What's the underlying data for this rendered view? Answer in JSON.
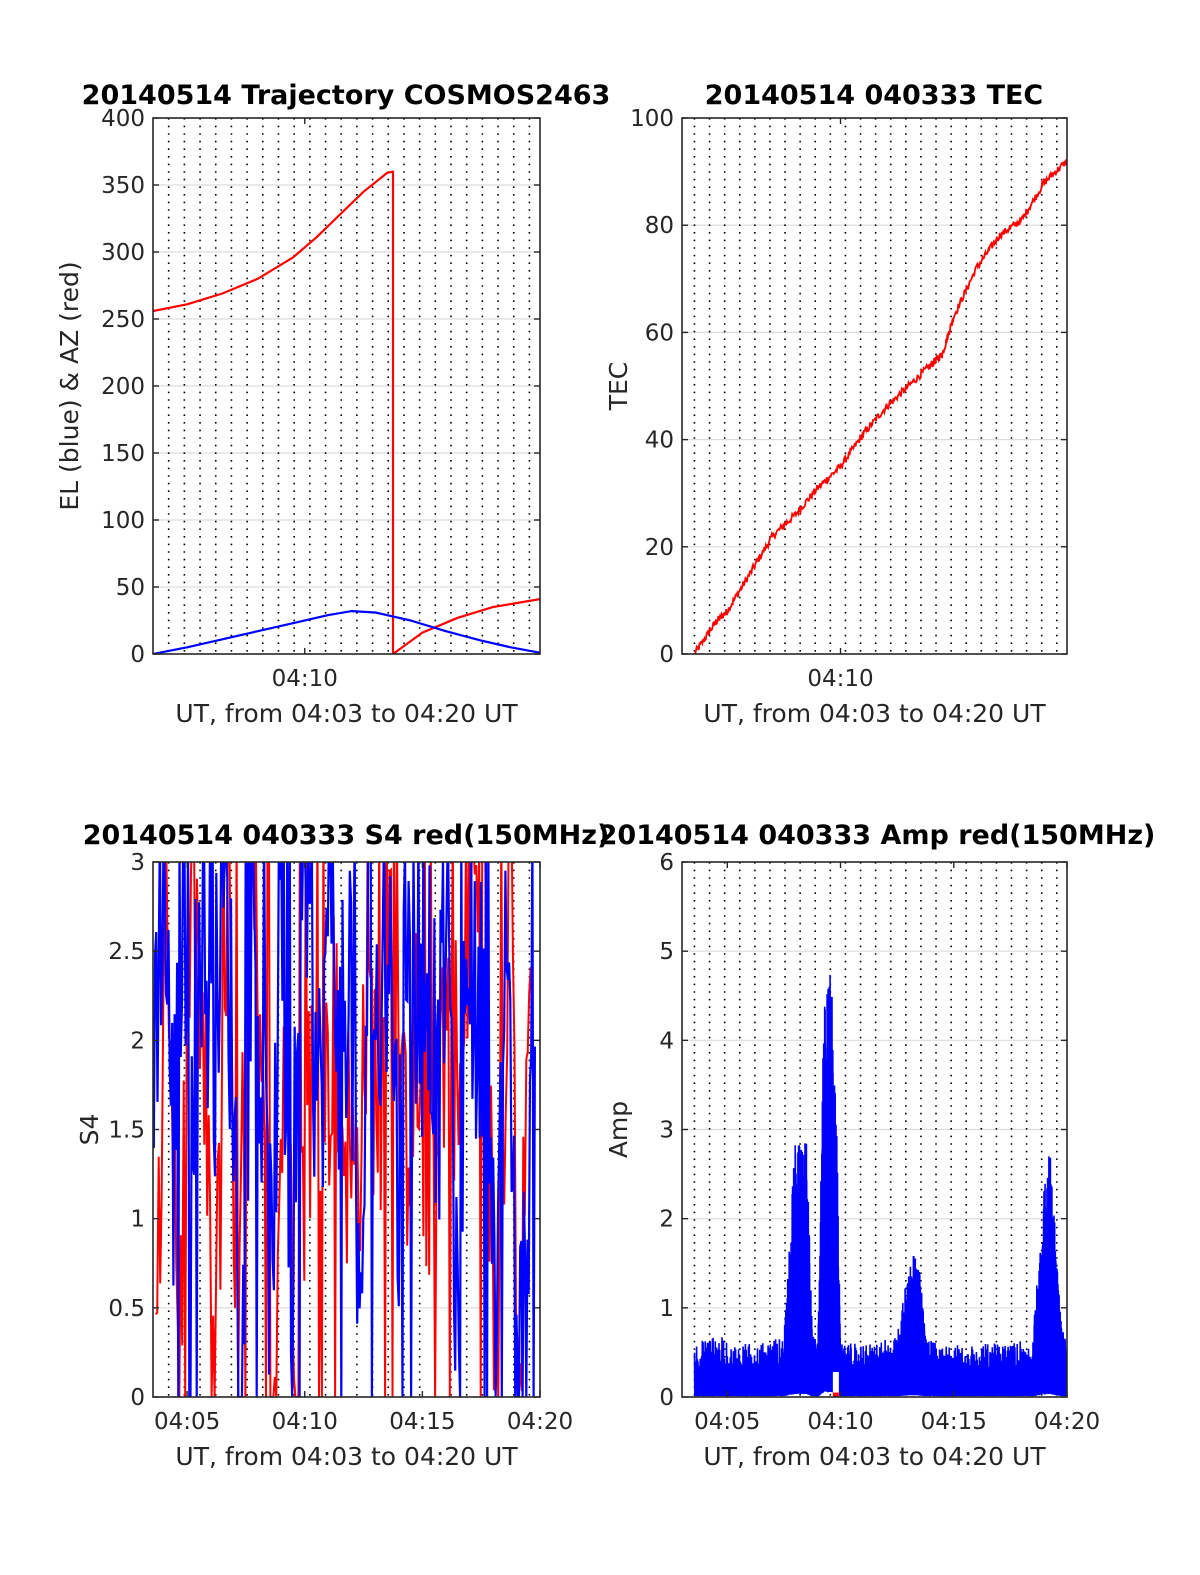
{
  "colors": {
    "red": "#ff0000",
    "blue": "#0000ff",
    "white": "#ffffff"
  },
  "chart_data": [
    {
      "id": "trajectory",
      "type": "line",
      "title": "20140514 Trajectory COSMOS2463",
      "xlabel": "UT, from 04:03 to 04:20 UT",
      "ylabel": "EL (blue) & AZ (red)",
      "xlim": [
        "04:03:33",
        "04:20:00"
      ],
      "ylim": [
        0,
        400
      ],
      "yticks": [
        0,
        50,
        100,
        150,
        200,
        250,
        300,
        350,
        400
      ],
      "yticklabels": [
        "0",
        "50",
        "100",
        "150",
        "200",
        "250",
        "300",
        "350",
        "400"
      ],
      "xticks": [
        "04:10"
      ],
      "xticklabels": [
        "04:10"
      ],
      "grid": true,
      "series": [
        {
          "color": "red",
          "x": [
            "04:03:33",
            "04:05:00",
            "04:06:30",
            "04:08:00",
            "04:09:30",
            "04:10:30",
            "04:11:30",
            "04:12:30",
            "04:13:30",
            "04:13:45",
            "04:13:45",
            "04:15:00",
            "04:16:30",
            "04:18:00",
            "04:20:00"
          ],
          "y": [
            256,
            261,
            269,
            280,
            296,
            311,
            328,
            345,
            359,
            360,
            0,
            16,
            27,
            35,
            41
          ]
        },
        {
          "color": "blue",
          "x": [
            "04:03:33",
            "04:05:00",
            "04:06:30",
            "04:08:00",
            "04:09:30",
            "04:11:00",
            "04:12:00",
            "04:13:00",
            "04:14:30",
            "04:16:00",
            "04:17:30",
            "04:18:45",
            "04:20:00"
          ],
          "y": [
            0,
            5,
            11,
            17,
            23,
            29,
            32,
            31,
            25,
            17,
            10,
            5,
            1
          ]
        }
      ]
    },
    {
      "id": "tec",
      "type": "line",
      "title": "20140514 040333 TEC",
      "xlabel": "UT, from 04:03 to 04:20 UT",
      "ylabel": "TEC",
      "xlim": [
        "04:03:00",
        "04:20:00"
      ],
      "ylim": [
        0,
        100
      ],
      "yticks": [
        0,
        20,
        40,
        60,
        80,
        100
      ],
      "yticklabels": [
        "0",
        "20",
        "40",
        "60",
        "80",
        "100"
      ],
      "xticks": [
        "04:10"
      ],
      "xticklabels": [
        "04:10"
      ],
      "grid": true,
      "series": [
        {
          "color": "red",
          "x": [
            "04:03:33",
            "04:04:30",
            "04:05:00",
            "04:06:00",
            "04:07:00",
            "04:08:00",
            "04:09:00",
            "04:10:00",
            "04:11:00",
            "04:12:00",
            "04:13:00",
            "04:14:00",
            "04:14:30",
            "04:15:00",
            "04:16:00",
            "04:17:00",
            "04:18:00",
            "04:19:00",
            "04:20:00"
          ],
          "y": [
            0,
            6,
            8,
            15,
            22,
            26,
            31,
            35,
            41,
            46,
            50,
            54,
            56,
            63,
            72,
            78,
            81,
            88,
            92
          ]
        }
      ]
    },
    {
      "id": "s4",
      "type": "line",
      "title": "20140514 040333 S4 red(150MHz)",
      "xlabel": "UT, from 04:03 to 04:20 UT",
      "ylabel": "S4",
      "xlim": [
        "04:03:33",
        "04:20:00"
      ],
      "ylim": [
        0,
        3
      ],
      "yticks": [
        0,
        0.5,
        1,
        1.5,
        2,
        2.5,
        3
      ],
      "yticklabels": [
        "0",
        "0.5",
        "1",
        "1.5",
        "2",
        "2.5",
        "3"
      ],
      "xticks": [
        "04:05",
        "04:10",
        "04:15",
        "04:20"
      ],
      "xticklabels": [
        "04:05",
        "04:10",
        "04:15",
        "04:20"
      ],
      "grid": true,
      "series": [
        {
          "color": "red",
          "x": [
            "04:03:40",
            "04:04:10",
            "04:04:40",
            "04:05:10",
            "04:05:40",
            "04:06:10",
            "04:06:40",
            "04:07:10",
            "04:07:40",
            "04:08:10",
            "04:08:40",
            "04:09:10",
            "04:09:40",
            "04:10:10",
            "04:10:40",
            "04:11:10",
            "04:11:40",
            "04:12:10",
            "04:12:40",
            "04:13:10",
            "04:13:40",
            "04:14:10",
            "04:14:40",
            "04:15:10",
            "04:15:40",
            "04:16:10",
            "04:16:40",
            "04:17:10",
            "04:17:40",
            "04:18:10",
            "04:18:40",
            "04:19:10",
            "04:19:40"
          ],
          "y": [
            0.0,
            2.9,
            0.2,
            3.0,
            1.9,
            0.0,
            2.6,
            0.1,
            3.0,
            1.4,
            0.0,
            2.2,
            0.4,
            1.8,
            1.2,
            2.1,
            1.6,
            1.1,
            2.3,
            1.5,
            2.7,
            1.3,
            2.0,
            1.2,
            1.9,
            2.3,
            1.5,
            3.0,
            2.2,
            0.0,
            3.0,
            0.0,
            3.0
          ]
        },
        {
          "color": "blue",
          "x": [
            "04:03:35",
            "04:04:00",
            "04:04:25",
            "04:04:50",
            "04:05:15",
            "04:05:40",
            "04:06:05",
            "04:06:30",
            "04:06:55",
            "04:07:20",
            "04:07:45",
            "04:08:10",
            "04:08:35",
            "04:09:00",
            "04:09:25",
            "04:09:50",
            "04:10:15",
            "04:10:40",
            "04:11:05",
            "04:11:30",
            "04:11:55",
            "04:12:20",
            "04:12:45",
            "04:13:10",
            "04:13:35",
            "04:14:00",
            "04:14:25",
            "04:14:50",
            "04:15:15",
            "04:15:40",
            "04:16:05",
            "04:16:30",
            "04:16:55",
            "04:17:20",
            "04:17:45",
            "04:18:10",
            "04:18:35",
            "04:19:00",
            "04:19:25",
            "04:19:50"
          ],
          "y": [
            2.0,
            3.0,
            1.3,
            3.0,
            1.9,
            2.8,
            1.7,
            3.0,
            2.0,
            0.0,
            3.0,
            1.7,
            0.6,
            2.8,
            0.4,
            2.9,
            2.2,
            1.6,
            3.0,
            1.9,
            2.6,
            0.0,
            2.9,
            1.9,
            2.7,
            1.1,
            3.0,
            2.0,
            2.5,
            1.6,
            3.0,
            0.0,
            2.9,
            1.9,
            2.6,
            0.0,
            3.0,
            0.0,
            0.6,
            3.0
          ]
        }
      ]
    },
    {
      "id": "amp",
      "type": "line",
      "title": "20140514 040333 Amp red(150MHz)",
      "xlabel": "UT, from 04:03 to 04:20 UT",
      "ylabel": "Amp",
      "xlim": [
        "04:03:00",
        "04:20:00"
      ],
      "ylim": [
        0,
        6
      ],
      "yticks": [
        0,
        1,
        2,
        3,
        4,
        5,
        6
      ],
      "yticklabels": [
        "0",
        "1",
        "2",
        "3",
        "4",
        "5",
        "6"
      ],
      "xticks": [
        "04:05",
        "04:10",
        "04:15",
        "04:20"
      ],
      "xticklabels": [
        "04:05",
        "04:10",
        "04:15",
        "04:20"
      ],
      "grid": true,
      "series": [
        {
          "color": "blue",
          "x": [
            "04:03:33",
            "04:04:30",
            "04:05:30",
            "04:06:30",
            "04:07:30",
            "04:08:00",
            "04:08:15",
            "04:08:30",
            "04:08:45",
            "04:09:00",
            "04:09:15",
            "04:09:30",
            "04:09:45",
            "04:10:00",
            "04:10:30",
            "04:11:30",
            "04:12:30",
            "04:13:00",
            "04:13:15",
            "04:13:30",
            "04:13:45",
            "04:14:30",
            "04:15:30",
            "04:16:30",
            "04:17:30",
            "04:18:30",
            "04:19:00",
            "04:19:15",
            "04:19:30",
            "04:19:45",
            "04:20:00"
          ],
          "y": [
            0.6,
            0.7,
            0.6,
            0.6,
            0.7,
            2.9,
            2.8,
            2.9,
            0.7,
            0.6,
            4.3,
            4.9,
            4.2,
            0.6,
            0.6,
            0.6,
            0.7,
            1.5,
            1.6,
            1.4,
            0.7,
            0.6,
            0.6,
            0.6,
            0.6,
            0.7,
            2.4,
            2.8,
            1.8,
            0.8,
            0.6
          ]
        },
        {
          "color": "white",
          "x": [
            "04:09:45",
            "04:09:50"
          ],
          "y": [
            0.28,
            0.26
          ]
        },
        {
          "color": "red",
          "x": [
            "04:09:45",
            "04:09:50"
          ],
          "y": [
            0.05,
            0.05
          ]
        }
      ]
    }
  ]
}
